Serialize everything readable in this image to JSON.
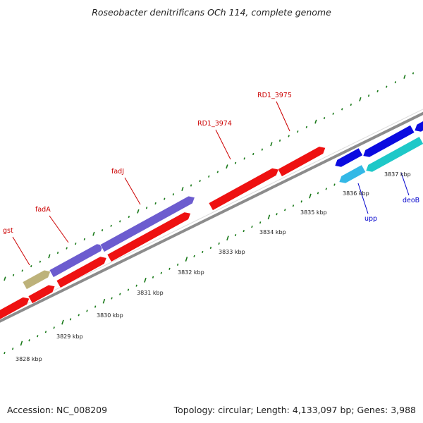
{
  "title": "Roseobacter denitrificans OCh 114, complete genome",
  "footer": {
    "accession": "Accession: NC_008209",
    "summary": "Topology: circular; Length: 4,133,097 bp; Genes: 3,988"
  },
  "colors": {
    "backbone": "#8c8c8c",
    "tick_mark": "#1a7a1a",
    "forward_label": "#cc0000",
    "reverse_label": "#0000cc",
    "gene_red": "#ee1111",
    "gene_purple": "#6c5ccf",
    "gene_khaki": "#bdb27a",
    "gene_blue": "#0a0ae0",
    "gene_cyan": "#33b8e6",
    "gene_teal": "#1ec8c8"
  },
  "scale": {
    "unit": "kbp",
    "ticks": [
      {
        "label": "3828 kbp"
      },
      {
        "label": "3829 kbp"
      },
      {
        "label": "3830 kbp"
      },
      {
        "label": "3831 kbp"
      },
      {
        "label": "3832 kbp"
      },
      {
        "label": "3833 kbp"
      },
      {
        "label": "3834 kbp"
      },
      {
        "label": "3835 kbp"
      },
      {
        "label": "3836 kbp"
      },
      {
        "label": "3837 kbp"
      }
    ]
  },
  "genes": [
    {
      "label": "",
      "strand": "forward",
      "color": "gene_red"
    },
    {
      "label": "gst",
      "strand": "forward",
      "color": "gene_khaki"
    },
    {
      "label": "fadA",
      "strand": "forward",
      "color": "gene_purple"
    },
    {
      "label": "fadJ",
      "strand": "forward",
      "color": "gene_purple"
    },
    {
      "label": "",
      "strand": "forward",
      "color": "gene_red"
    },
    {
      "label": "",
      "strand": "forward",
      "color": "gene_red"
    },
    {
      "label": "",
      "strand": "forward",
      "color": "gene_red"
    },
    {
      "label": "RD1_3974",
      "strand": "forward",
      "color": "gene_red"
    },
    {
      "label": "RD1_3975",
      "strand": "forward",
      "color": "gene_red"
    },
    {
      "label": "",
      "strand": "reverse",
      "color": "gene_blue"
    },
    {
      "label": "",
      "strand": "reverse",
      "color": "gene_blue"
    },
    {
      "label": "",
      "strand": "reverse",
      "color": "gene_blue"
    },
    {
      "label": "upp",
      "strand": "reverse",
      "color": "gene_cyan"
    },
    {
      "label": "deoB",
      "strand": "reverse",
      "color": "gene_teal"
    }
  ]
}
